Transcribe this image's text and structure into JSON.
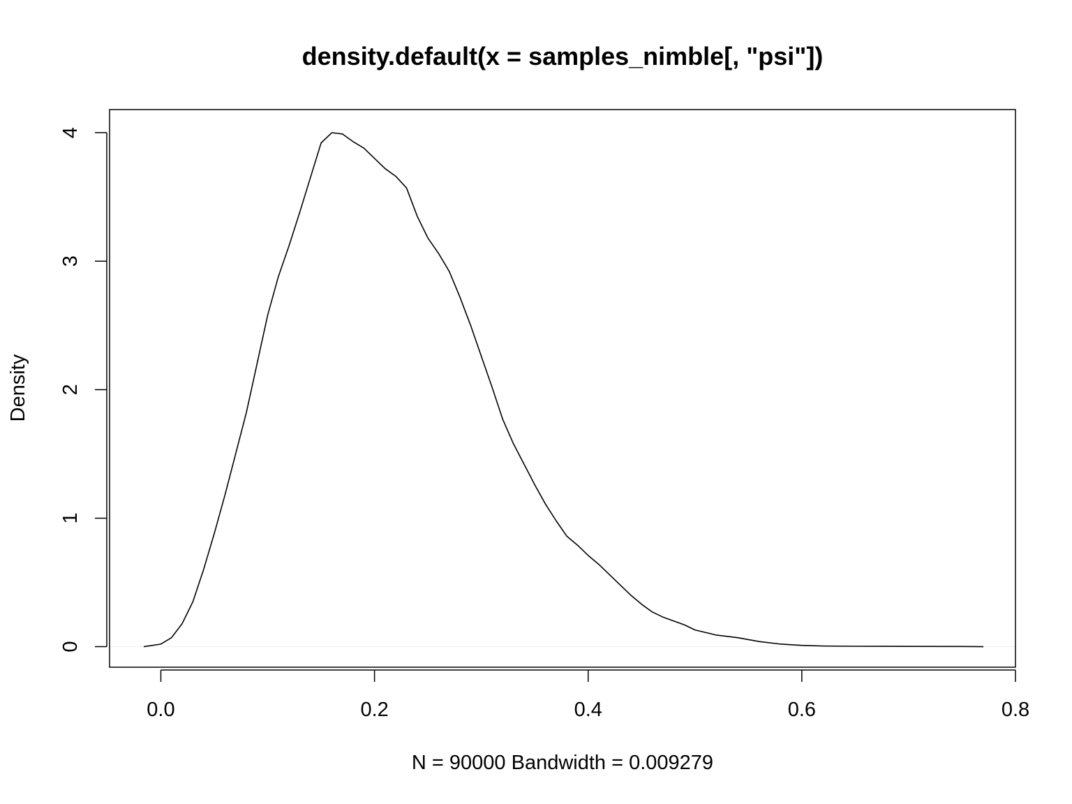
{
  "chart_data": {
    "type": "line",
    "title": "density.default(x = samples_nimble[, \"psi\"])",
    "xlabel": "N = 90000   Bandwidth = 0.009279",
    "ylabel": "Density",
    "xlim": [
      -0.048,
      0.8
    ],
    "ylim": [
      -0.16,
      4.18
    ],
    "xticks": [
      0.0,
      0.2,
      0.4,
      0.6,
      0.8
    ],
    "xtick_labels": [
      "0.0",
      "0.2",
      "0.4",
      "0.6",
      "0.8"
    ],
    "yticks": [
      0,
      1,
      2,
      3,
      4
    ],
    "ytick_labels": [
      "0",
      "1",
      "2",
      "3",
      "4"
    ],
    "grid": false,
    "zero_line": true,
    "colors": {
      "line": "#000000",
      "zero_line": "#eeeeee",
      "background": "#ffffff"
    },
    "series": [
      {
        "x": [
          -0.016,
          0.0,
          0.01,
          0.02,
          0.03,
          0.04,
          0.05,
          0.06,
          0.07,
          0.08,
          0.09,
          0.1,
          0.11,
          0.12,
          0.13,
          0.14,
          0.15,
          0.16,
          0.17,
          0.18,
          0.19,
          0.2,
          0.21,
          0.22,
          0.23,
          0.24,
          0.25,
          0.26,
          0.27,
          0.28,
          0.29,
          0.3,
          0.31,
          0.32,
          0.33,
          0.34,
          0.35,
          0.36,
          0.37,
          0.38,
          0.39,
          0.4,
          0.41,
          0.42,
          0.43,
          0.44,
          0.45,
          0.46,
          0.47,
          0.48,
          0.49,
          0.5,
          0.52,
          0.54,
          0.56,
          0.58,
          0.6,
          0.62,
          0.65,
          0.7,
          0.75,
          0.77
        ],
        "y": [
          0.0,
          0.02,
          0.07,
          0.18,
          0.35,
          0.6,
          0.88,
          1.18,
          1.5,
          1.82,
          2.2,
          2.58,
          2.88,
          3.12,
          3.38,
          3.65,
          3.92,
          4.0,
          3.99,
          3.93,
          3.88,
          3.8,
          3.72,
          3.66,
          3.57,
          3.35,
          3.18,
          3.06,
          2.92,
          2.72,
          2.5,
          2.26,
          2.02,
          1.77,
          1.58,
          1.42,
          1.26,
          1.11,
          0.98,
          0.86,
          0.79,
          0.71,
          0.64,
          0.56,
          0.48,
          0.4,
          0.33,
          0.27,
          0.23,
          0.2,
          0.17,
          0.13,
          0.09,
          0.07,
          0.04,
          0.02,
          0.01,
          0.005,
          0.003,
          0.002,
          0.001,
          0.0
        ]
      }
    ]
  }
}
